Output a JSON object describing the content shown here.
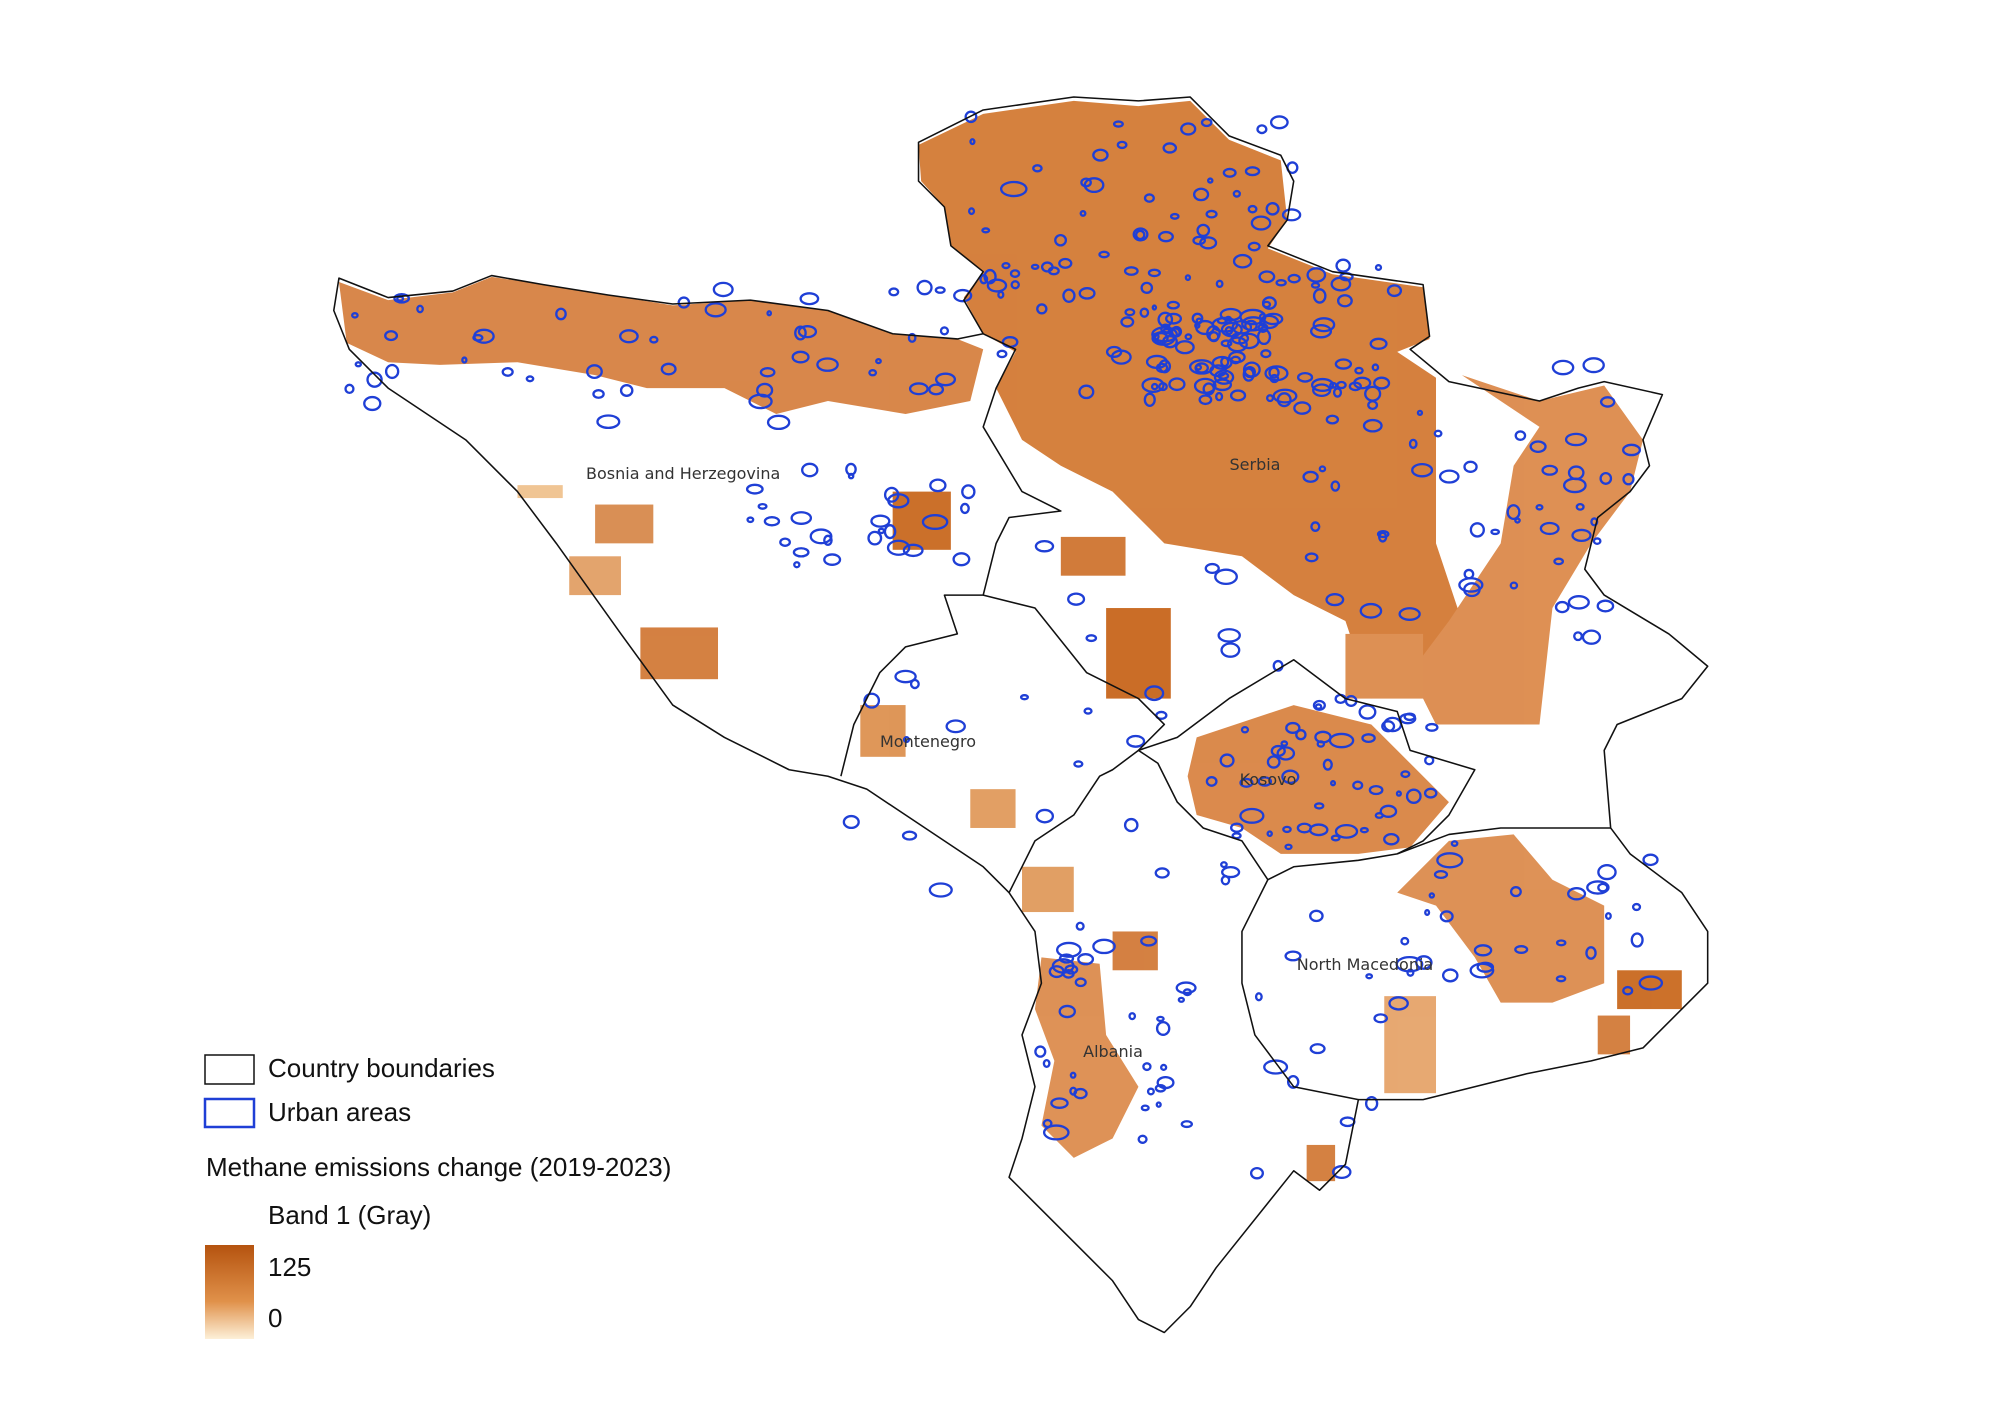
{
  "map": {
    "country_labels": [
      "Bosnia and Herzegovina",
      "Serbia",
      "Montenegro",
      "Kosovo",
      "North Macedonia",
      "Albania"
    ],
    "legend": {
      "boundaries": "Country boundaries",
      "urban": "Urban areas",
      "layer_title": "Methane emissions change (2019-2023)",
      "band": "Band 1 (Gray)",
      "colorbar_max": 125,
      "colorbar_min": 0,
      "color_high": "#b5530f",
      "color_low": "#fdf0d8",
      "urban_color": "#1f3fd6"
    }
  }
}
